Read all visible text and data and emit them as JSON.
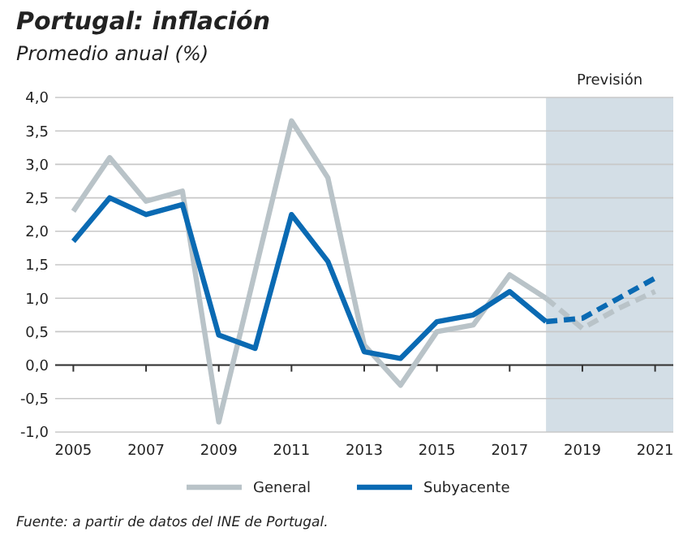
{
  "chart_data": {
    "type": "line",
    "title": "Portugal: inflación",
    "subtitle": "Promedio anual (%)",
    "xlim": [
      2004.5,
      2021.5
    ],
    "xticks": [
      2005,
      2007,
      2009,
      2011,
      2013,
      2015,
      2017,
      2019,
      2021
    ],
    "ylim": [
      -1,
      4
    ],
    "yticks": [
      {
        "value": -1,
        "label": "-1,0"
      },
      {
        "value": -0.5,
        "label": "-0,5"
      },
      {
        "value": 0,
        "label": "0,0"
      },
      {
        "value": 0.5,
        "label": "0,5"
      },
      {
        "value": 1,
        "label": "1,0"
      },
      {
        "value": 1.5,
        "label": "1,5"
      },
      {
        "value": 2,
        "label": "2,0"
      },
      {
        "value": 2.5,
        "label": "2,5"
      },
      {
        "value": 3,
        "label": "3,0"
      },
      {
        "value": 3.5,
        "label": "3,5"
      },
      {
        "value": 4,
        "label": "4,0"
      }
    ],
    "grid": "y",
    "legend": "bottom",
    "bands": [
      {
        "axis": "x",
        "from": 2018,
        "to": 2021.5,
        "label": "Previsión",
        "color": "#d3dee6"
      }
    ],
    "series": [
      {
        "name": "General",
        "color": "#b9c3c8",
        "line_style": "solid",
        "x": [
          2005,
          2006,
          2007,
          2008,
          2009,
          2010,
          2011,
          2012,
          2013,
          2014,
          2015,
          2016,
          2017,
          2018
        ],
        "values": [
          2.3,
          3.1,
          2.45,
          2.6,
          -0.85,
          1.4,
          3.65,
          2.8,
          0.3,
          -0.3,
          0.5,
          0.6,
          1.35,
          1.0
        ]
      },
      {
        "name": "Subyacente",
        "color": "#0a6ab3",
        "line_style": "solid",
        "x": [
          2005,
          2006,
          2007,
          2008,
          2009,
          2010,
          2011,
          2012,
          2013,
          2014,
          2015,
          2016,
          2017,
          2018
        ],
        "values": [
          1.85,
          2.5,
          2.25,
          2.4,
          0.45,
          0.25,
          2.25,
          1.55,
          0.2,
          0.1,
          0.65,
          0.75,
          1.1,
          0.65
        ]
      },
      {
        "color": "#b9c3c8",
        "line_style": "dashed",
        "x": [
          2018,
          2019,
          2020,
          2021
        ],
        "values": [
          1.0,
          0.55,
          0.85,
          1.1
        ]
      },
      {
        "color": "#0a6ab3",
        "line_style": "dashed",
        "x": [
          2018,
          2019,
          2020,
          2021
        ],
        "values": [
          0.65,
          0.7,
          1.0,
          1.3
        ]
      }
    ],
    "annotations": [
      "Fuente: a partir de datos del INE de Portugal."
    ]
  }
}
